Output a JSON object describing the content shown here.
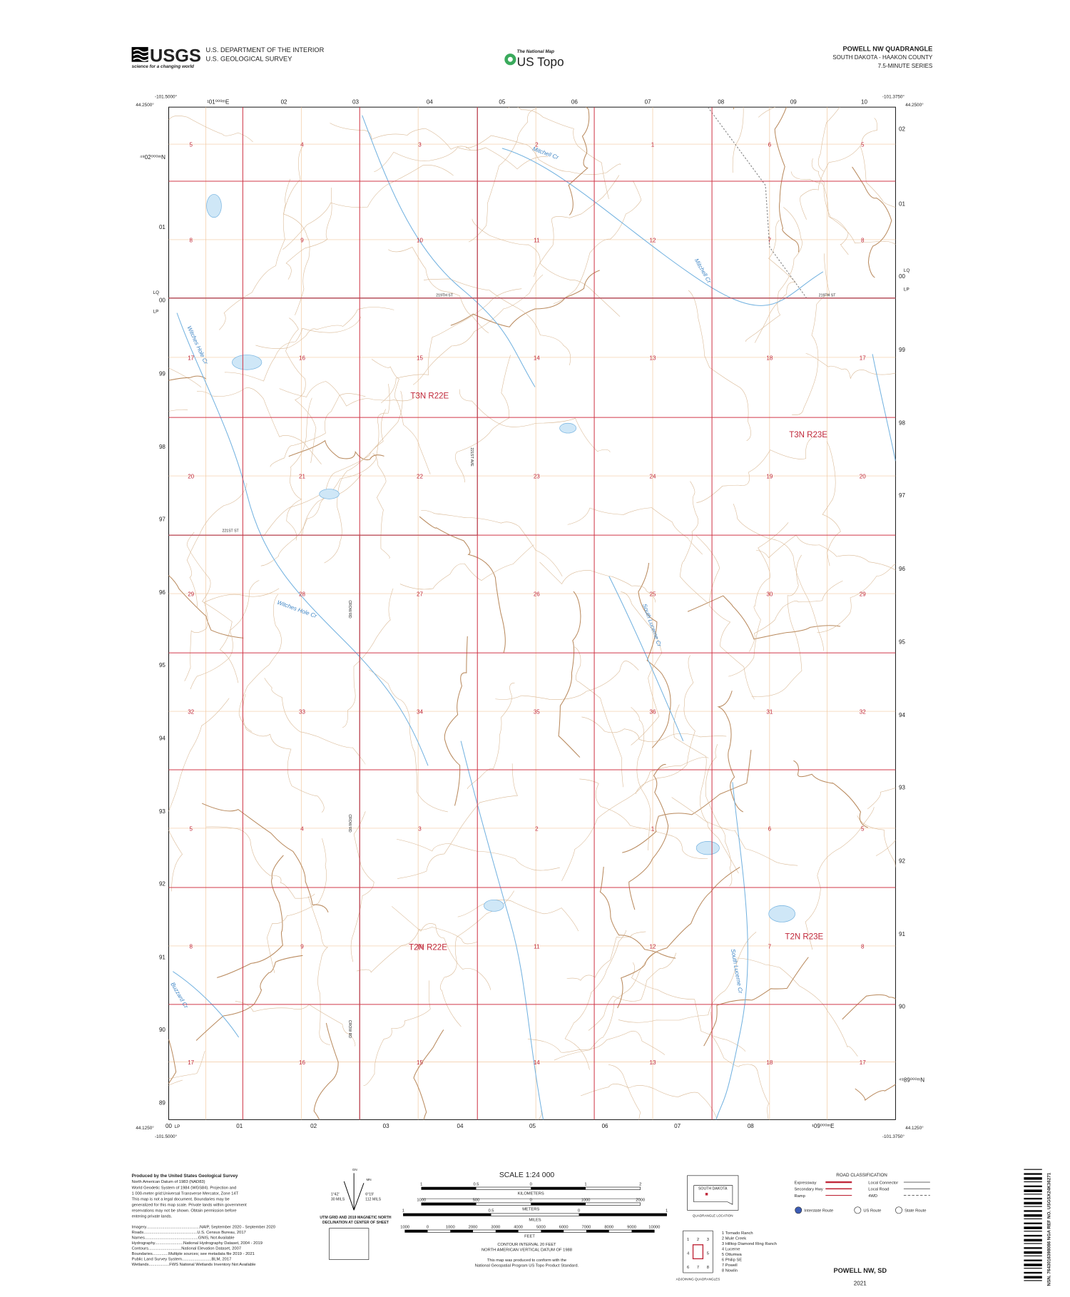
{
  "header": {
    "usgs": "USGS",
    "usgs_tagline": "science for a changing world",
    "department": "U.S. DEPARTMENT OF THE INTERIOR",
    "survey": "U.S. GEOLOGICAL SURVEY",
    "national_map": "The National Map",
    "us_topo": "US Topo",
    "title": "POWELL NW QUADRANGLE",
    "state_county": "SOUTH DAKOTA - HAAKON COUNTY",
    "series": "7.5-MINUTE SERIES"
  },
  "map": {
    "corners": {
      "top_left_lon": "-101.5000°",
      "top_left_lat": "44.2500°",
      "top_right_lon": "-101.3750°",
      "top_right_lat": "44.2500°",
      "bottom_left_lat": "44.1250°",
      "bottom_left_lon": "-101.5000°",
      "bottom_right_lat": "44.1250°",
      "bottom_right_lon": "-101.3750°"
    },
    "top_utm": [
      "¹01⁰⁰⁰ᵐE",
      "02",
      "03",
      "04",
      "05",
      "06",
      "07",
      "08",
      "09",
      "10"
    ],
    "bottom_utm": [
      "00",
      "01",
      "02",
      "03",
      "04",
      "05",
      "06",
      "07",
      "08",
      "¹09⁰⁰⁰ᵐE"
    ],
    "left_utm": [
      "⁴⁹02⁰⁰⁰ᵐN",
      "01",
      "00",
      "99",
      "98",
      "97",
      "96",
      "95",
      "94",
      "93",
      "92",
      "91",
      "90",
      "89"
    ],
    "right_utm": [
      "02",
      "01",
      "00",
      "99",
      "98",
      "97",
      "96",
      "95",
      "94",
      "93",
      "92",
      "91",
      "90",
      "⁴⁹89⁰⁰⁰ᵐN"
    ],
    "edge_marks": {
      "left": [
        "LQ",
        "LP"
      ],
      "right": [
        "LQ",
        "LP"
      ],
      "bottom": [
        "LP"
      ]
    },
    "sections": [
      [
        5,
        4,
        3,
        2,
        1,
        6,
        5
      ],
      [
        8,
        9,
        10,
        11,
        12,
        7,
        8
      ],
      [
        17,
        16,
        15,
        14,
        13,
        18,
        17
      ],
      [
        20,
        21,
        22,
        23,
        24,
        19,
        20
      ],
      [
        29,
        28,
        27,
        26,
        25,
        30,
        29
      ],
      [
        32,
        33,
        34,
        35,
        36,
        31,
        32
      ],
      [
        5,
        4,
        3,
        2,
        1,
        6,
        5
      ],
      [
        8,
        9,
        10,
        11,
        12,
        7,
        8
      ],
      [
        17,
        16,
        15,
        14,
        13,
        18,
        17
      ]
    ],
    "townships": [
      "T3N R22E",
      "T3N R23E",
      "T2N R22E",
      "T2N R23E"
    ],
    "roads": [
      "219TH ST",
      "219TH ST",
      "221ST ST",
      "221ST AVE",
      "CROW RD",
      "CROW RD",
      "CROW RD"
    ],
    "streams": [
      "Mitchell Cr",
      "Mitchell Cr",
      "Witches Hole Cr",
      "Witches Hole Cr",
      "South Lucerne Cr",
      "South Lucerne Cr",
      "Buzzard Cr"
    ]
  },
  "footer": {
    "producer": [
      "Produced by the United States Geological Survey",
      "North American Datum of 1983 (NAD83)",
      "World Geodetic System of 1984 (WGS84). Projection and",
      "1 000-meter grid:Universal Transverse Mercator, Zone 14T",
      "This map is not a legal document. Boundaries may be",
      "generalized for this map scale. Private lands within government",
      "reservations may not be shown. Obtain permission before",
      "entering private lands."
    ],
    "credits": [
      "Imagery...............................................NAIP, September 2020 - September 2020",
      "Roads...............................................U.S. Census Bureau, 2017",
      "Names...............................................GNIS, Not Available",
      "Hydrography.........................National Hydrography Dataset, 2004 - 2019",
      "Contours.............................National Elevation Dataset, 2007",
      "Boundaries..............Multiple sources; see metadata file 2019 - 2021",
      "Public Land Survey System..........................BLM, 2017",
      "Wetlands..................FWS National Wetlands Inventory Not Available"
    ],
    "declination": {
      "grid": "GN",
      "mn": "MN",
      "angle1": "1°42'",
      "mils1": "30 MILS",
      "angle2": "6°19'",
      "mils2": "112 MILS",
      "caption1": "UTM GRID AND 2019 MAGNETIC NORTH",
      "caption2": "DECLINATION AT CENTER OF SHEET"
    },
    "scale": {
      "title": "SCALE 1:24 000",
      "km_label": "KILOMETERS",
      "km_ticks": [
        1,
        0.5,
        0,
        1,
        2
      ],
      "m_label": "METERS",
      "m_ticks": [
        1000,
        500,
        0,
        1000,
        2000
      ],
      "mi_label": "MILES",
      "mi_ticks": [
        1,
        0.5,
        0,
        1
      ],
      "ft_label": "FEET",
      "ft_ticks": [
        1000,
        0,
        1000,
        2000,
        3000,
        4000,
        5000,
        6000,
        7000,
        8000,
        9000,
        10000
      ],
      "notes": [
        "CONTOUR INTERVAL 20 FEET",
        "NORTH AMERICAN VERTICAL DATUM OF 1988",
        "This map was produced to conform with the",
        "National Geospatial Program US Topo Product Standard."
      ]
    },
    "road_class": {
      "title": "ROAD CLASSIFICATION",
      "left": [
        "Expressway",
        "Secondary Hwy",
        "Ramp"
      ],
      "right": [
        "Local Connector",
        "Local Road",
        "4WD"
      ],
      "routes": [
        "Interstate Route",
        "US Route",
        "State Route"
      ]
    },
    "location": {
      "state": "SOUTH DAKOTA",
      "caption": "QUADRANGLE LOCATION"
    },
    "adjoining": {
      "cells": [
        1,
        2,
        3,
        4,
        5,
        6,
        7,
        8
      ],
      "names": [
        "1 Tornado Ranch",
        "2 Mule Creek",
        "3 Hilltop Diamond Ring Ranch",
        "4 Lucerne",
        "5 Ottumwa",
        "6 Philip SE",
        "7 Powell",
        "8 Nowlin"
      ],
      "caption": "ADJOINING QUADRANGLES"
    },
    "sheet_title": "POWELL NW, SD",
    "year": "2021",
    "barcode": "NSN. 7643016398086 NGA REF NO. USGSX24K36271"
  }
}
